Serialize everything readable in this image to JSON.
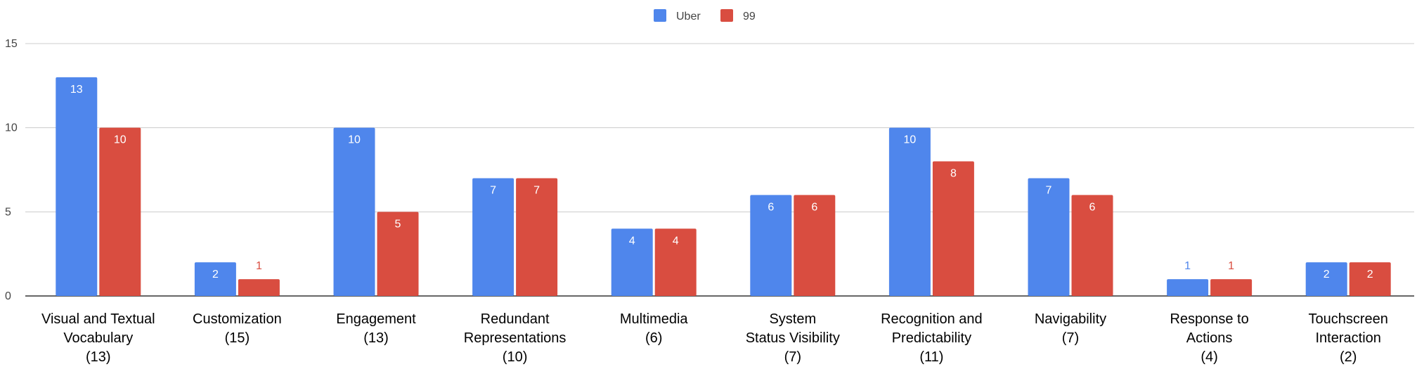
{
  "chart_data": {
    "type": "bar",
    "title": "",
    "xlabel": "",
    "ylabel": "",
    "ylim": [
      0,
      15
    ],
    "yticks": [
      0,
      5,
      10,
      15
    ],
    "grid": true,
    "legend_position": "top-center",
    "categories": [
      {
        "lines": [
          "Visual and Textual",
          "Vocabulary",
          "(13)"
        ]
      },
      {
        "lines": [
          "Customization",
          "(15)"
        ]
      },
      {
        "lines": [
          "Engagement",
          "(13)"
        ]
      },
      {
        "lines": [
          "Redundant",
          "Representations",
          "(10)"
        ]
      },
      {
        "lines": [
          "Multimedia",
          "(6)"
        ]
      },
      {
        "lines": [
          "System",
          "Status Visibility",
          "(7)"
        ]
      },
      {
        "lines": [
          "Recognition and",
          "Predictability",
          "(11)"
        ]
      },
      {
        "lines": [
          "Navigability",
          "(7)"
        ]
      },
      {
        "lines": [
          "Response to",
          "Actions",
          "(4)"
        ]
      },
      {
        "lines": [
          "Touchscreen",
          "Interaction",
          "(2)"
        ]
      }
    ],
    "series": [
      {
        "name": "Uber",
        "color": "#4f86ec",
        "values": [
          13,
          2,
          10,
          7,
          4,
          6,
          10,
          7,
          1,
          2
        ]
      },
      {
        "name": "99",
        "color": "#d94d40",
        "values": [
          10,
          1,
          5,
          7,
          4,
          6,
          8,
          6,
          1,
          2
        ]
      }
    ]
  }
}
